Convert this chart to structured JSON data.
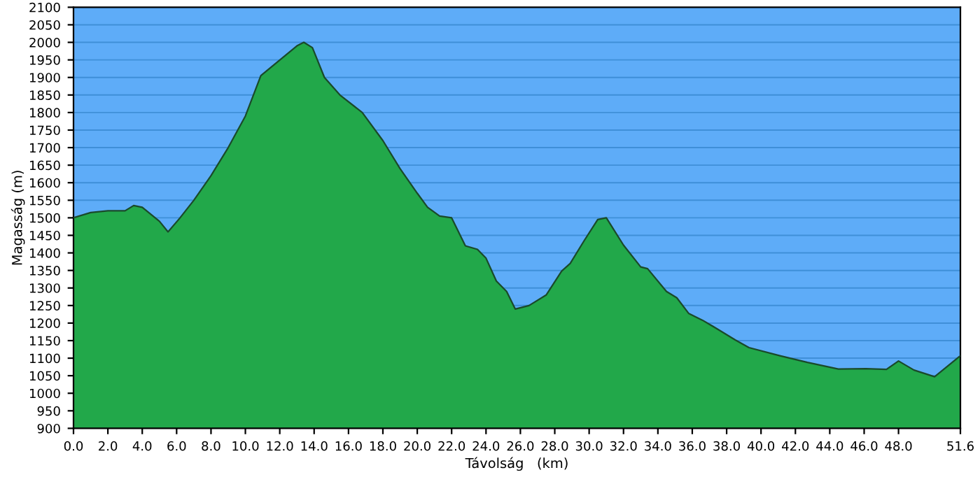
{
  "chart_data": {
    "type": "area",
    "xlabel": "Távolság   (km)",
    "ylabel": "Magasság (m)",
    "xlim": [
      0,
      51.6
    ],
    "ylim": [
      900,
      2100
    ],
    "xticks": [
      {
        "value": 0,
        "label": "0.0"
      },
      {
        "value": 2,
        "label": "2.0"
      },
      {
        "value": 4,
        "label": "4.0"
      },
      {
        "value": 6,
        "label": "6.0"
      },
      {
        "value": 8,
        "label": "8.0"
      },
      {
        "value": 10,
        "label": "10.0"
      },
      {
        "value": 12,
        "label": "12.0"
      },
      {
        "value": 14,
        "label": "14.0"
      },
      {
        "value": 16,
        "label": "16.0"
      },
      {
        "value": 18,
        "label": "18.0"
      },
      {
        "value": 20,
        "label": "20.0"
      },
      {
        "value": 22,
        "label": "22.0"
      },
      {
        "value": 24,
        "label": "24.0"
      },
      {
        "value": 26,
        "label": "26.0"
      },
      {
        "value": 28,
        "label": "28.0"
      },
      {
        "value": 30,
        "label": "30.0"
      },
      {
        "value": 32,
        "label": "32.0"
      },
      {
        "value": 34,
        "label": "34.0"
      },
      {
        "value": 36,
        "label": "36.0"
      },
      {
        "value": 38,
        "label": "38.0"
      },
      {
        "value": 40,
        "label": "40.0"
      },
      {
        "value": 42,
        "label": "42.0"
      },
      {
        "value": 44,
        "label": "44.0"
      },
      {
        "value": 46,
        "label": "46.0"
      },
      {
        "value": 48,
        "label": "48.0"
      },
      51.6
    ],
    "yticks": [
      900,
      950,
      1000,
      1050,
      1100,
      1150,
      1200,
      1250,
      1300,
      1350,
      1400,
      1450,
      1500,
      1550,
      1600,
      1650,
      1700,
      1750,
      1800,
      1850,
      1900,
      1950,
      2000,
      2050,
      2100
    ],
    "grid": "y",
    "series": [
      {
        "color": "#22a84a",
        "x": [
          0,
          1,
          2,
          3,
          3.5,
          4,
          5,
          5.5,
          6.2,
          7,
          8,
          9,
          10,
          10.9,
          13,
          13.4,
          13.9,
          14.6,
          15.5,
          16.8,
          18,
          19,
          20,
          20.6,
          21.3,
          22,
          22.8,
          23.5,
          24,
          24.6,
          25.2,
          25.7,
          26.5,
          27.5,
          28.4,
          28.9,
          29.7,
          30.5,
          31,
          32,
          33,
          33.4,
          34.5,
          35.1,
          35.8,
          36.6,
          37.5,
          38.5,
          39.3,
          41.1,
          42.7,
          44.5,
          46.1,
          47.3,
          48,
          48.9,
          50.1,
          51.6
        ],
        "values": [
          1500,
          1515,
          1520,
          1520,
          1535,
          1530,
          1490,
          1460,
          1500,
          1550,
          1620,
          1700,
          1790,
          1905,
          1990,
          2000,
          1985,
          1900,
          1850,
          1800,
          1720,
          1640,
          1570,
          1530,
          1505,
          1500,
          1420,
          1410,
          1385,
          1320,
          1290,
          1240,
          1250,
          1280,
          1348,
          1370,
          1434,
          1495,
          1500,
          1422,
          1360,
          1355,
          1290,
          1272,
          1227,
          1208,
          1182,
          1152,
          1130,
          1107,
          1088,
          1069,
          1070,
          1068,
          1092,
          1066,
          1047,
          1107
        ]
      }
    ]
  }
}
